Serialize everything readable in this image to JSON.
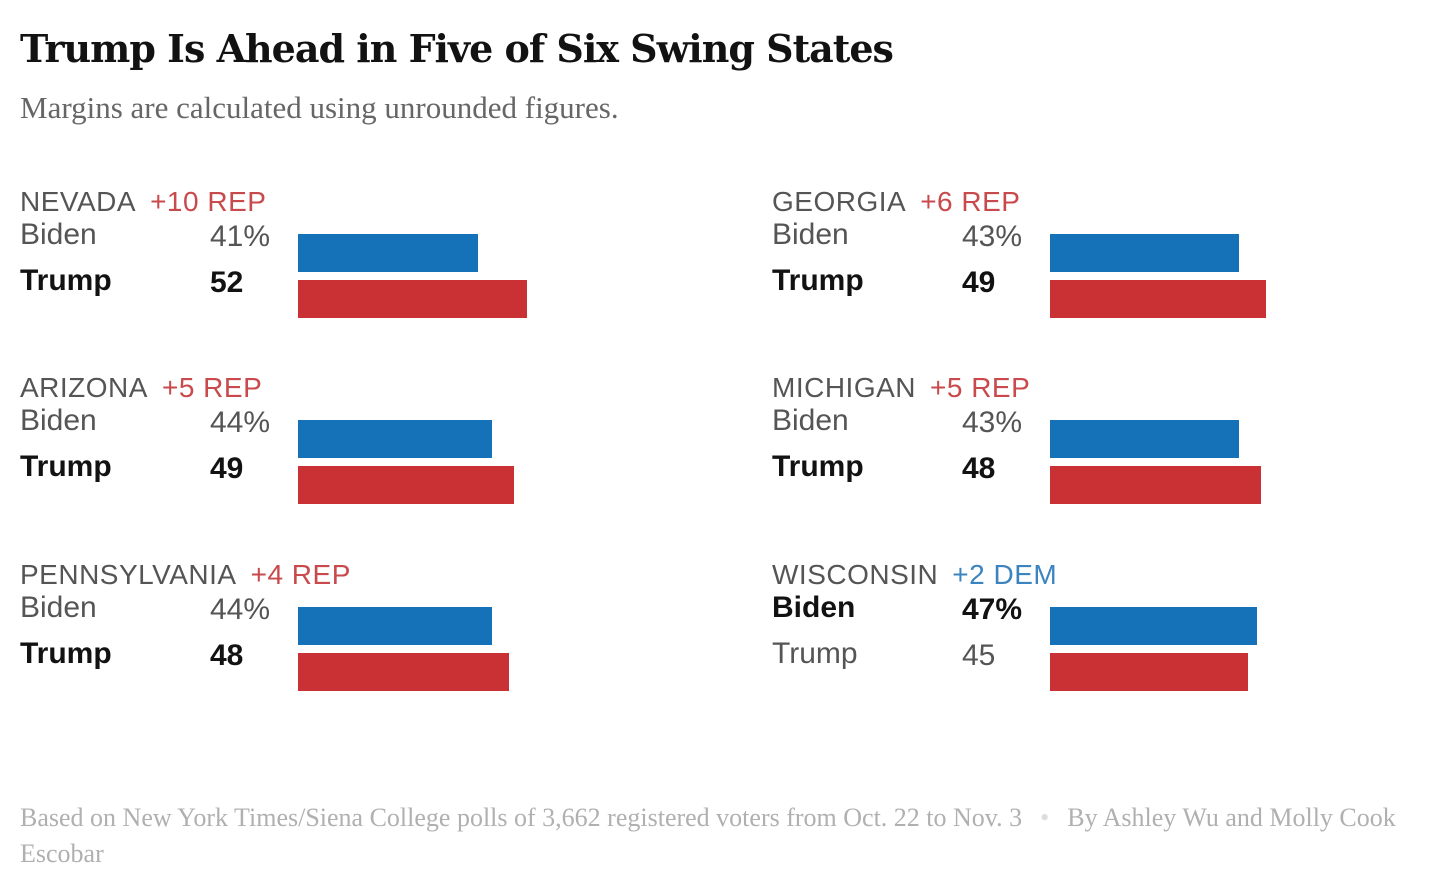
{
  "title": "Trump Is Ahead in Five of Six Swing States",
  "subtitle": "Margins are calculated using unrounded figures.",
  "footer": {
    "source": "Based on New York Times/Siena College polls of 3,662 registered voters from Oct. 22 to Nov. 3",
    "separator": "•",
    "byline": "By Ashley Wu and Molly Cook Escobar"
  },
  "colors": {
    "dem": "#1672b8",
    "rep": "#c93134",
    "dem_text": "#3b84c0",
    "rep_text": "#c94a4c"
  },
  "chart_data": {
    "type": "bar",
    "title": "Trump Is Ahead in Five of Six Swing States",
    "subtitle": "Margins are calculated using unrounded figures.",
    "xlim": [
      0,
      100
    ],
    "grid": false,
    "states": [
      {
        "name": "NEVADA",
        "margin": "+10 REP",
        "margin_party": "rep",
        "winner": "Trump",
        "rows": [
          {
            "candidate": "Biden",
            "label": "41%",
            "value": 41,
            "party": "dem"
          },
          {
            "candidate": "Trump",
            "label": "52",
            "value": 52,
            "party": "rep"
          }
        ]
      },
      {
        "name": "GEORGIA",
        "margin": "+6 REP",
        "margin_party": "rep",
        "winner": "Trump",
        "rows": [
          {
            "candidate": "Biden",
            "label": "43%",
            "value": 43,
            "party": "dem"
          },
          {
            "candidate": "Trump",
            "label": "49",
            "value": 49,
            "party": "rep"
          }
        ]
      },
      {
        "name": "ARIZONA",
        "margin": "+5 REP",
        "margin_party": "rep",
        "winner": "Trump",
        "rows": [
          {
            "candidate": "Biden",
            "label": "44%",
            "value": 44,
            "party": "dem"
          },
          {
            "candidate": "Trump",
            "label": "49",
            "value": 49,
            "party": "rep"
          }
        ]
      },
      {
        "name": "MICHIGAN",
        "margin": "+5 REP",
        "margin_party": "rep",
        "winner": "Trump",
        "rows": [
          {
            "candidate": "Biden",
            "label": "43%",
            "value": 43,
            "party": "dem"
          },
          {
            "candidate": "Trump",
            "label": "48",
            "value": 48,
            "party": "rep"
          }
        ]
      },
      {
        "name": "PENNSYLVANIA",
        "margin": "+4 REP",
        "margin_party": "rep",
        "winner": "Trump",
        "rows": [
          {
            "candidate": "Biden",
            "label": "44%",
            "value": 44,
            "party": "dem"
          },
          {
            "candidate": "Trump",
            "label": "48",
            "value": 48,
            "party": "rep"
          }
        ]
      },
      {
        "name": "WISCONSIN",
        "margin": "+2 DEM",
        "margin_party": "dem",
        "winner": "Biden",
        "rows": [
          {
            "candidate": "Biden",
            "label": "47%",
            "value": 47,
            "party": "dem"
          },
          {
            "candidate": "Trump",
            "label": "45",
            "value": 45,
            "party": "rep"
          }
        ]
      }
    ]
  }
}
